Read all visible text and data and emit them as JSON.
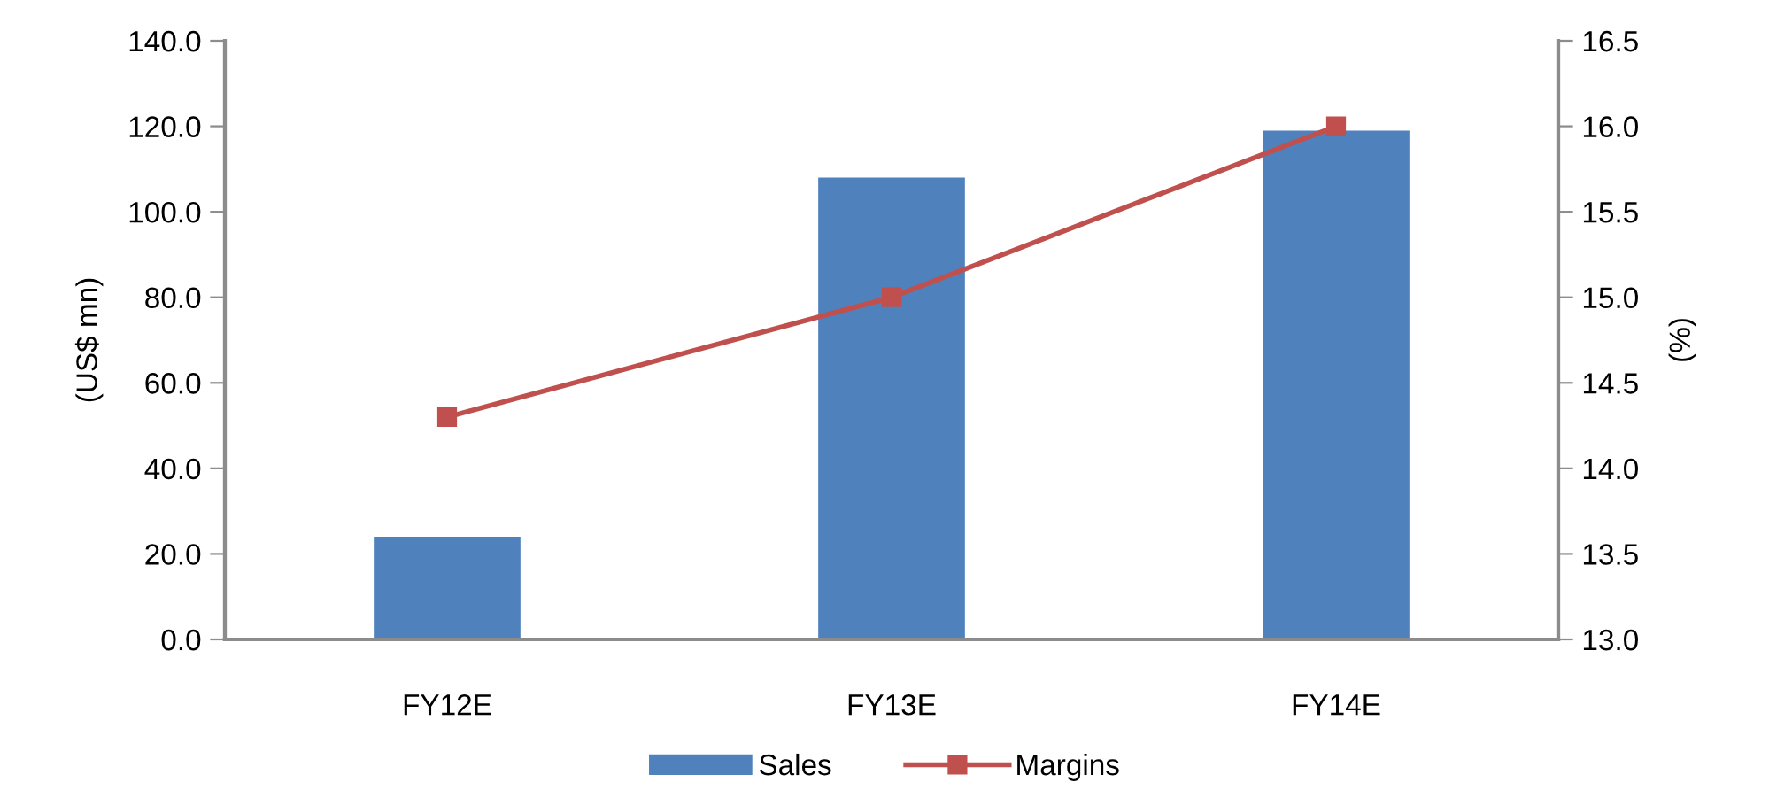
{
  "chart_data": {
    "type": "bar",
    "categories": [
      "FY12E",
      "FY13E",
      "FY14E"
    ],
    "series": [
      {
        "name": "Sales",
        "color": "#4f81bd",
        "values": [
          24,
          108,
          119
        ]
      },
      {
        "name": "Margins",
        "type": "line",
        "axis": "y2",
        "color": "#c0504d",
        "values": [
          14.3,
          15.0,
          16.0
        ],
        "marker": "square",
        "line_style": "solid"
      }
    ],
    "ylabel": "(US$ mn)",
    "y2label": "(%)",
    "ylim": [
      0,
      140
    ],
    "yticks": [
      {
        "value": 0,
        "label": "0.0"
      },
      {
        "value": 20,
        "label": "20.0"
      },
      {
        "value": 40,
        "label": "40.0"
      },
      {
        "value": 60,
        "label": "60.0"
      },
      {
        "value": 80,
        "label": "80.0"
      },
      {
        "value": 100,
        "label": "100.0"
      },
      {
        "value": 120,
        "label": "120.0"
      },
      {
        "value": 140,
        "label": "140.0"
      }
    ],
    "y2lim": [
      13,
      16.5
    ],
    "y2ticks": [
      {
        "value": 13,
        "label": "13.0"
      },
      {
        "value": 13.5,
        "label": "13.5"
      },
      {
        "value": 14,
        "label": "14.0"
      },
      {
        "value": 14.5,
        "label": "14.5"
      },
      {
        "value": 15,
        "label": "15.0"
      },
      {
        "value": 15.5,
        "label": "15.5"
      },
      {
        "value": 16,
        "label": "16.0"
      },
      {
        "value": 16.5,
        "label": "16.5"
      }
    ],
    "legend": "bottom",
    "grid": false
  }
}
